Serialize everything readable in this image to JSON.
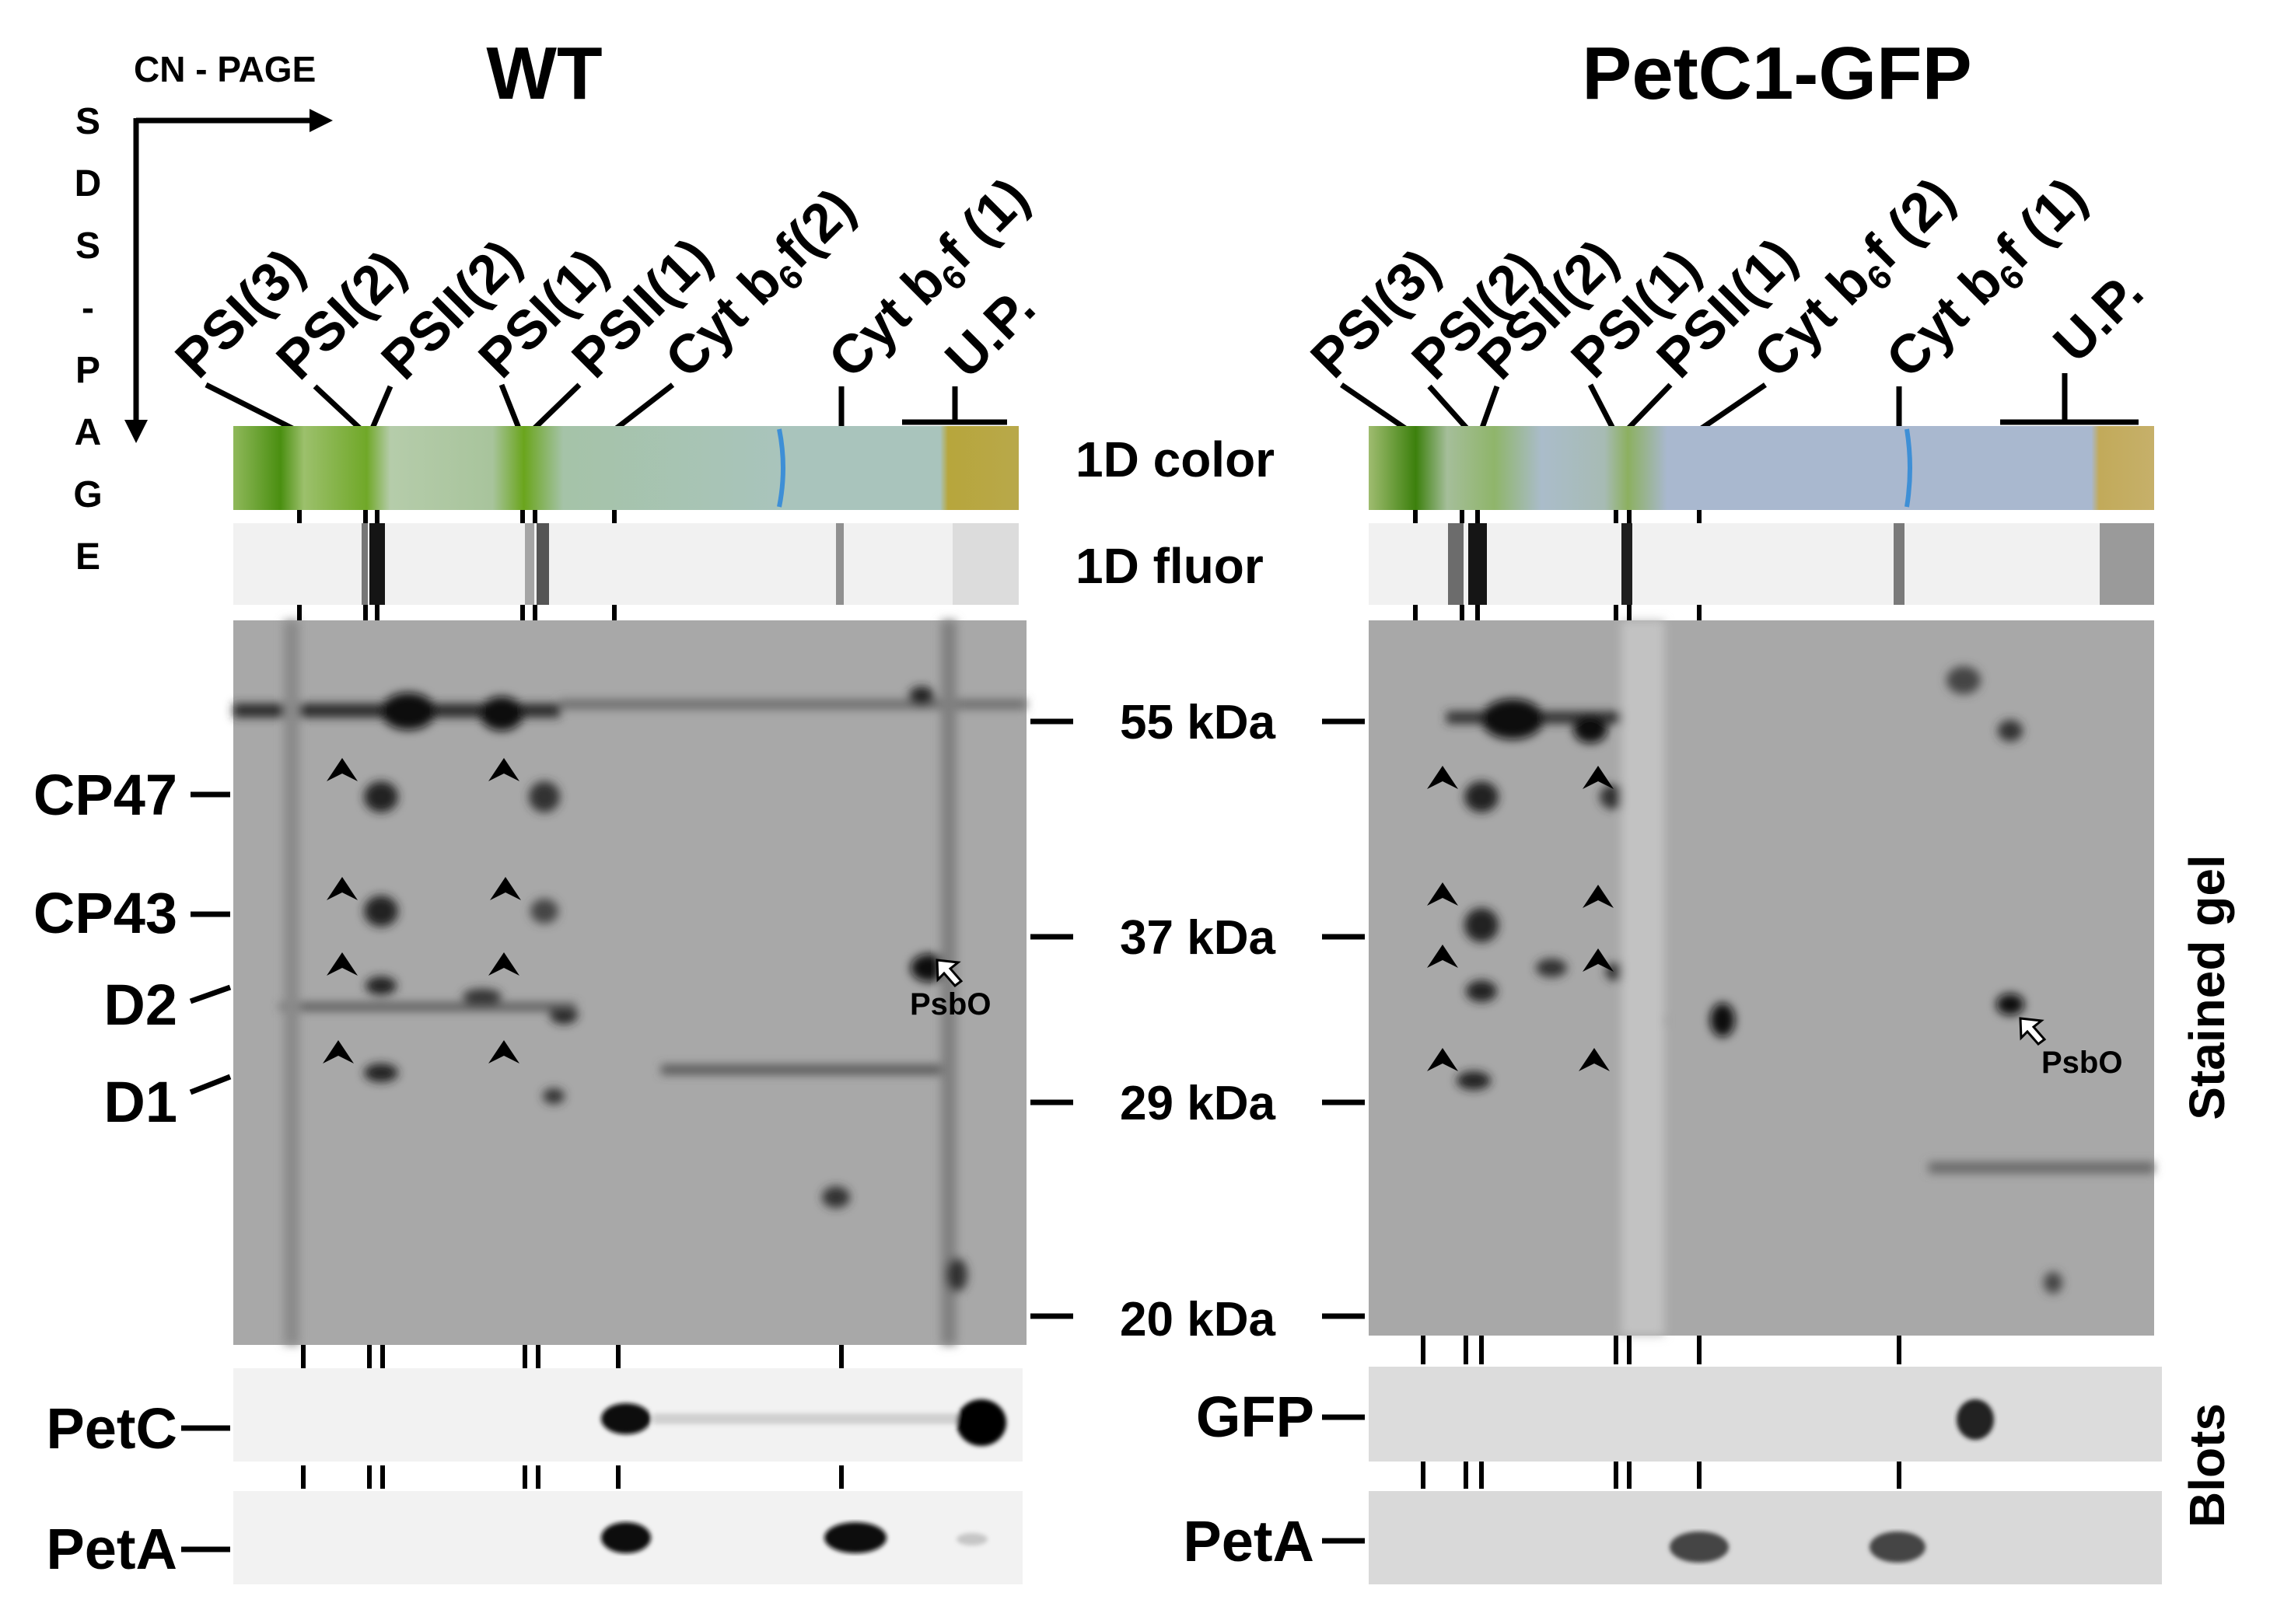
{
  "axes": {
    "horizontal": "CN - PAGE",
    "vertical_letters": [
      "S",
      "D",
      "S",
      "-",
      "P",
      "A",
      "G",
      "E"
    ]
  },
  "panels": [
    {
      "title": "WT",
      "lane_labels": [
        {
          "pre": "PSI(3)"
        },
        {
          "pre": "PSI(2)"
        },
        {
          "pre": "PSII(2)"
        },
        {
          "pre": "PSI(1)"
        },
        {
          "pre": "PSII(1)"
        },
        {
          "pre": "Cyt b",
          "sub": "6",
          "post": "f(2)"
        },
        {
          "pre": "Cyt b",
          "sub": "6",
          "post": "f (1)"
        },
        {
          "pre": "U.P."
        }
      ],
      "left_protein_labels": [
        "CP47",
        "CP43",
        "D2",
        "D1"
      ],
      "psbo_label": "PsbO",
      "blots": [
        "PetC",
        "PetA"
      ],
      "lane_colors": {
        "background": "#a9c4bc",
        "green": "#6aa51c",
        "blue_band": "#3e8fd6",
        "up": "#b7a63c"
      }
    },
    {
      "title": "PetC1-GFP",
      "lane_labels": [
        {
          "pre": "PSI(3)"
        },
        {
          "pre": "PSI(2)"
        },
        {
          "pre": "PSII(2)"
        },
        {
          "pre": "PSI(1)"
        },
        {
          "pre": "PSII(1)"
        },
        {
          "pre": "Cyt b",
          "sub": "6",
          "post": "f (2)"
        },
        {
          "pre": "Cyt b",
          "sub": "6",
          "post": "f (1)"
        },
        {
          "pre": "U.P."
        }
      ],
      "psbo_label": "PsbO",
      "blots": [
        "GFP",
        "PetA"
      ],
      "lane_colors": {
        "background": "#a9b8cf",
        "green": "#5e9e1a",
        "blue_band": "#3e8fd6",
        "up": "#c2aa5a"
      }
    }
  ],
  "row_labels": {
    "color": "1D color",
    "fluor": "1D fluor",
    "stained": "Stained gel",
    "blots": "Blots"
  },
  "mw_markers": [
    "55 kDa",
    "37 kDa",
    "29 kDa",
    "20 kDa"
  ]
}
